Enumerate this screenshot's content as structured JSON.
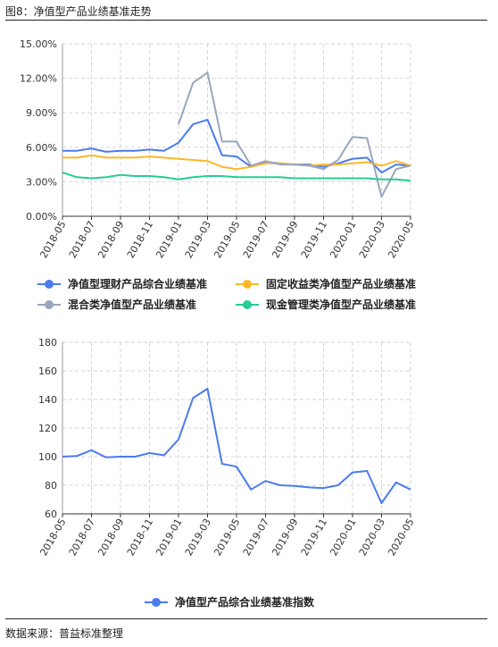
{
  "figure_title": "图8：净值型产品业绩基准走势",
  "source": "数据来源：普益标准整理",
  "chart_data": [
    {
      "type": "line",
      "title": "",
      "xlabel": "",
      "ylabel": "",
      "ylim": [
        0,
        15
      ],
      "y_ticks": [
        "0.00%",
        "3.00%",
        "6.00%",
        "9.00%",
        "12.00%",
        "15.00%"
      ],
      "x_tick_labels": [
        "2018-05",
        "2018-07",
        "2018-09",
        "2018-11",
        "2019-01",
        "2019-03",
        "2019-05",
        "2019-07",
        "2019-09",
        "2019-11",
        "2020-01",
        "2020-03",
        "2020-05"
      ],
      "x": [
        "2018-05",
        "2018-06",
        "2018-07",
        "2018-08",
        "2018-09",
        "2018-10",
        "2018-11",
        "2018-12",
        "2019-01",
        "2019-02",
        "2019-03",
        "2019-04",
        "2019-05",
        "2019-06",
        "2019-07",
        "2019-08",
        "2019-09",
        "2019-10",
        "2019-11",
        "2019-12",
        "2020-01",
        "2020-02",
        "2020-03",
        "2020-04",
        "2020-05"
      ],
      "grid": true,
      "legend_position": "bottom",
      "series": [
        {
          "name": "净值型理财产品综合业绩基准",
          "color": "#4b7bec",
          "values": [
            5.7,
            5.7,
            5.9,
            5.6,
            5.7,
            5.7,
            5.8,
            5.7,
            6.4,
            8.0,
            8.4,
            5.3,
            5.2,
            4.3,
            4.7,
            4.6,
            4.5,
            4.5,
            4.3,
            4.6,
            5.0,
            5.1,
            3.8,
            4.5,
            4.4
          ]
        },
        {
          "name": "固定收益类净值型产品业绩基准",
          "color": "#fbb829",
          "values": [
            5.1,
            5.1,
            5.3,
            5.1,
            5.1,
            5.1,
            5.2,
            5.1,
            5.0,
            4.9,
            4.8,
            4.3,
            4.1,
            4.3,
            4.6,
            4.6,
            4.5,
            4.4,
            4.5,
            4.5,
            4.6,
            4.7,
            4.4,
            4.8,
            4.4
          ]
        },
        {
          "name": "混合类净值型产品业绩基准",
          "color": "#9aa6bd",
          "values": [
            null,
            null,
            null,
            null,
            null,
            null,
            null,
            null,
            8.0,
            11.6,
            12.5,
            6.5,
            6.5,
            4.4,
            4.8,
            4.5,
            4.5,
            4.4,
            4.1,
            4.9,
            6.9,
            6.8,
            1.7,
            4.1,
            4.4
          ]
        },
        {
          "name": "现金管理类净值型产品业绩基准",
          "color": "#26cc95",
          "values": [
            3.8,
            3.4,
            3.3,
            3.4,
            3.6,
            3.5,
            3.5,
            3.4,
            3.2,
            3.4,
            3.5,
            3.5,
            3.4,
            3.4,
            3.4,
            3.4,
            3.3,
            3.3,
            3.3,
            3.3,
            3.3,
            3.3,
            3.2,
            3.2,
            3.1
          ]
        }
      ]
    },
    {
      "type": "line",
      "title": "",
      "xlabel": "",
      "ylabel": "",
      "ylim": [
        60,
        180
      ],
      "y_ticks": [
        "60",
        "80",
        "100",
        "120",
        "140",
        "160",
        "180"
      ],
      "x_tick_labels": [
        "2018-05",
        "2018-07",
        "2018-09",
        "2018-11",
        "2019-01",
        "2019-03",
        "2019-05",
        "2019-07",
        "2019-09",
        "2019-11",
        "2020-01",
        "2020-03",
        "2020-05"
      ],
      "x": [
        "2018-05",
        "2018-06",
        "2018-07",
        "2018-08",
        "2018-09",
        "2018-10",
        "2018-11",
        "2018-12",
        "2019-01",
        "2019-02",
        "2019-03",
        "2019-04",
        "2019-05",
        "2019-06",
        "2019-07",
        "2019-08",
        "2019-09",
        "2019-10",
        "2019-11",
        "2019-12",
        "2020-01",
        "2020-02",
        "2020-03",
        "2020-04",
        "2020-05"
      ],
      "grid": true,
      "legend_position": "bottom",
      "series": [
        {
          "name": "净值型产品综合业绩基准指数",
          "color": "#4b7bec",
          "values": [
            100,
            100.5,
            104.5,
            99.5,
            100,
            100,
            102.5,
            101,
            112,
            141,
            147.5,
            95,
            93,
            77,
            83,
            80,
            79.5,
            78.5,
            78,
            80,
            89,
            90,
            67.5,
            82,
            77
          ]
        }
      ]
    }
  ]
}
